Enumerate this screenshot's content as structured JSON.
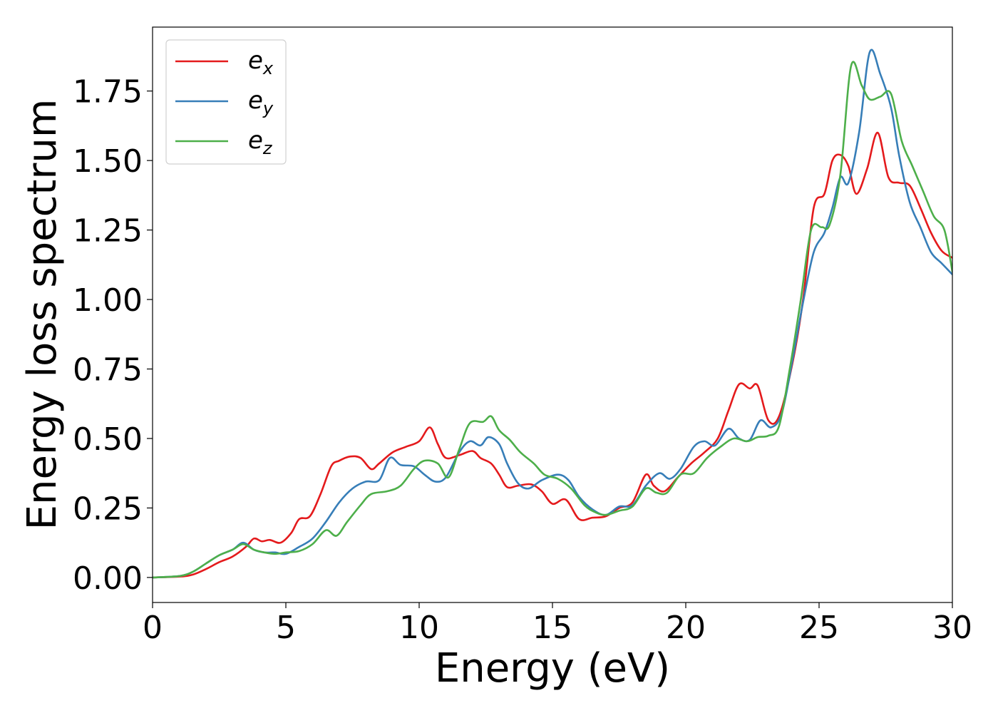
{
  "chart_data": {
    "type": "line",
    "xlabel": "Energy (eV)",
    "ylabel": "Energy loss spectrum",
    "xlim": [
      0,
      30
    ],
    "ylim": [
      -0.09,
      1.98
    ],
    "xticks": [
      0,
      5,
      10,
      15,
      20,
      25,
      30
    ],
    "xtick_labels": [
      "0",
      "5",
      "10",
      "15",
      "20",
      "25",
      "30"
    ],
    "yticks": [
      0,
      0.25,
      0.5,
      0.75,
      1.0,
      1.25,
      1.5,
      1.75
    ],
    "ytick_labels": [
      "0.00",
      "0.25",
      "0.50",
      "0.75",
      "1.00",
      "1.25",
      "1.50",
      "1.75"
    ],
    "grid": false,
    "legend_position": "top-left",
    "series": [
      {
        "name": "e_x",
        "legend_base": "e",
        "legend_sub": "x",
        "color": "#e41a1c",
        "points": [
          [
            0,
            0
          ],
          [
            1,
            0.003
          ],
          [
            1.5,
            0.01
          ],
          [
            2,
            0.03
          ],
          [
            2.5,
            0.055
          ],
          [
            3,
            0.075
          ],
          [
            3.5,
            0.11
          ],
          [
            3.8,
            0.14
          ],
          [
            4.1,
            0.13
          ],
          [
            4.4,
            0.135
          ],
          [
            4.8,
            0.125
          ],
          [
            5.2,
            0.16
          ],
          [
            5.5,
            0.21
          ],
          [
            5.9,
            0.22
          ],
          [
            6.3,
            0.3
          ],
          [
            6.7,
            0.4
          ],
          [
            7,
            0.42
          ],
          [
            7.4,
            0.435
          ],
          [
            7.8,
            0.43
          ],
          [
            8.2,
            0.39
          ],
          [
            8.5,
            0.41
          ],
          [
            9,
            0.45
          ],
          [
            9.5,
            0.47
          ],
          [
            10,
            0.49
          ],
          [
            10.4,
            0.54
          ],
          [
            10.7,
            0.48
          ],
          [
            11,
            0.43
          ],
          [
            11.5,
            0.44
          ],
          [
            12,
            0.455
          ],
          [
            12.3,
            0.43
          ],
          [
            12.7,
            0.41
          ],
          [
            13,
            0.37
          ],
          [
            13.3,
            0.325
          ],
          [
            13.7,
            0.33
          ],
          [
            14.2,
            0.335
          ],
          [
            14.6,
            0.31
          ],
          [
            15,
            0.265
          ],
          [
            15.5,
            0.28
          ],
          [
            16,
            0.21
          ],
          [
            16.5,
            0.215
          ],
          [
            17,
            0.22
          ],
          [
            17.5,
            0.25
          ],
          [
            18,
            0.27
          ],
          [
            18.5,
            0.37
          ],
          [
            18.8,
            0.33
          ],
          [
            19.2,
            0.31
          ],
          [
            19.7,
            0.36
          ],
          [
            20.2,
            0.41
          ],
          [
            20.7,
            0.45
          ],
          [
            21.2,
            0.5
          ],
          [
            21.6,
            0.6
          ],
          [
            22,
            0.695
          ],
          [
            22.4,
            0.68
          ],
          [
            22.7,
            0.69
          ],
          [
            23.1,
            0.565
          ],
          [
            23.5,
            0.58
          ],
          [
            24,
            0.77
          ],
          [
            24.4,
            1.0
          ],
          [
            24.8,
            1.33
          ],
          [
            25.2,
            1.38
          ],
          [
            25.5,
            1.5
          ],
          [
            25.8,
            1.52
          ],
          [
            26.1,
            1.48
          ],
          [
            26.4,
            1.38
          ],
          [
            26.8,
            1.47
          ],
          [
            27.2,
            1.6
          ],
          [
            27.6,
            1.44
          ],
          [
            28,
            1.42
          ],
          [
            28.4,
            1.41
          ],
          [
            28.8,
            1.33
          ],
          [
            29.2,
            1.24
          ],
          [
            29.6,
            1.175
          ],
          [
            30,
            1.15
          ]
        ]
      },
      {
        "name": "e_y",
        "legend_base": "e",
        "legend_sub": "y",
        "color": "#377eb8",
        "points": [
          [
            0,
            0
          ],
          [
            1,
            0.005
          ],
          [
            1.5,
            0.02
          ],
          [
            2,
            0.05
          ],
          [
            2.5,
            0.08
          ],
          [
            3,
            0.1
          ],
          [
            3.4,
            0.125
          ],
          [
            3.8,
            0.1
          ],
          [
            4.2,
            0.09
          ],
          [
            4.6,
            0.09
          ],
          [
            5,
            0.085
          ],
          [
            5.5,
            0.11
          ],
          [
            6,
            0.14
          ],
          [
            6.5,
            0.2
          ],
          [
            7,
            0.27
          ],
          [
            7.5,
            0.32
          ],
          [
            8,
            0.345
          ],
          [
            8.5,
            0.35
          ],
          [
            8.9,
            0.43
          ],
          [
            9.3,
            0.405
          ],
          [
            9.8,
            0.4
          ],
          [
            10.2,
            0.37
          ],
          [
            10.6,
            0.345
          ],
          [
            11,
            0.36
          ],
          [
            11.5,
            0.45
          ],
          [
            11.9,
            0.49
          ],
          [
            12.3,
            0.475
          ],
          [
            12.6,
            0.505
          ],
          [
            13,
            0.48
          ],
          [
            13.3,
            0.41
          ],
          [
            13.7,
            0.34
          ],
          [
            14.1,
            0.32
          ],
          [
            14.6,
            0.35
          ],
          [
            15.2,
            0.37
          ],
          [
            15.6,
            0.35
          ],
          [
            16,
            0.29
          ],
          [
            16.5,
            0.245
          ],
          [
            17,
            0.225
          ],
          [
            17.5,
            0.255
          ],
          [
            18,
            0.26
          ],
          [
            18.5,
            0.33
          ],
          [
            19,
            0.375
          ],
          [
            19.4,
            0.355
          ],
          [
            19.8,
            0.39
          ],
          [
            20.3,
            0.47
          ],
          [
            20.7,
            0.49
          ],
          [
            21.1,
            0.475
          ],
          [
            21.6,
            0.535
          ],
          [
            22,
            0.5
          ],
          [
            22.4,
            0.495
          ],
          [
            22.8,
            0.565
          ],
          [
            23.2,
            0.54
          ],
          [
            23.6,
            0.59
          ],
          [
            24,
            0.78
          ],
          [
            24.4,
            0.99
          ],
          [
            24.8,
            1.17
          ],
          [
            25.2,
            1.24
          ],
          [
            25.5,
            1.33
          ],
          [
            25.8,
            1.44
          ],
          [
            26.1,
            1.42
          ],
          [
            26.5,
            1.6
          ],
          [
            26.9,
            1.89
          ],
          [
            27.3,
            1.81
          ],
          [
            27.7,
            1.69
          ],
          [
            28,
            1.52
          ],
          [
            28.4,
            1.35
          ],
          [
            28.8,
            1.26
          ],
          [
            29.2,
            1.17
          ],
          [
            29.6,
            1.13
          ],
          [
            30,
            1.09
          ]
        ]
      },
      {
        "name": "e_z",
        "legend_base": "e",
        "legend_sub": "z",
        "color": "#4daf4a",
        "points": [
          [
            0,
            0
          ],
          [
            1,
            0.005
          ],
          [
            1.5,
            0.02
          ],
          [
            2,
            0.05
          ],
          [
            2.5,
            0.08
          ],
          [
            3,
            0.1
          ],
          [
            3.4,
            0.12
          ],
          [
            3.8,
            0.1
          ],
          [
            4.2,
            0.09
          ],
          [
            4.6,
            0.085
          ],
          [
            5,
            0.09
          ],
          [
            5.5,
            0.095
          ],
          [
            6,
            0.12
          ],
          [
            6.5,
            0.17
          ],
          [
            6.9,
            0.15
          ],
          [
            7.3,
            0.2
          ],
          [
            7.8,
            0.26
          ],
          [
            8.2,
            0.3
          ],
          [
            8.8,
            0.31
          ],
          [
            9.3,
            0.33
          ],
          [
            9.8,
            0.39
          ],
          [
            10.2,
            0.42
          ],
          [
            10.7,
            0.41
          ],
          [
            11.1,
            0.36
          ],
          [
            11.5,
            0.46
          ],
          [
            11.9,
            0.555
          ],
          [
            12.4,
            0.56
          ],
          [
            12.7,
            0.58
          ],
          [
            13,
            0.53
          ],
          [
            13.4,
            0.495
          ],
          [
            13.8,
            0.45
          ],
          [
            14.3,
            0.41
          ],
          [
            14.7,
            0.37
          ],
          [
            15.2,
            0.355
          ],
          [
            15.7,
            0.32
          ],
          [
            16.2,
            0.26
          ],
          [
            16.6,
            0.235
          ],
          [
            17,
            0.225
          ],
          [
            17.5,
            0.24
          ],
          [
            18,
            0.255
          ],
          [
            18.5,
            0.32
          ],
          [
            18.9,
            0.305
          ],
          [
            19.3,
            0.305
          ],
          [
            19.8,
            0.37
          ],
          [
            20.3,
            0.375
          ],
          [
            20.8,
            0.43
          ],
          [
            21.3,
            0.47
          ],
          [
            21.8,
            0.5
          ],
          [
            22.3,
            0.49
          ],
          [
            22.7,
            0.505
          ],
          [
            23.1,
            0.51
          ],
          [
            23.5,
            0.545
          ],
          [
            23.9,
            0.75
          ],
          [
            24.3,
            0.99
          ],
          [
            24.7,
            1.25
          ],
          [
            25.1,
            1.26
          ],
          [
            25.4,
            1.27
          ],
          [
            25.8,
            1.45
          ],
          [
            26.2,
            1.84
          ],
          [
            26.6,
            1.77
          ],
          [
            26.9,
            1.72
          ],
          [
            27.3,
            1.73
          ],
          [
            27.7,
            1.74
          ],
          [
            28.1,
            1.57
          ],
          [
            28.5,
            1.48
          ],
          [
            28.9,
            1.39
          ],
          [
            29.3,
            1.3
          ],
          [
            29.7,
            1.25
          ],
          [
            30,
            1.1
          ]
        ]
      }
    ]
  }
}
